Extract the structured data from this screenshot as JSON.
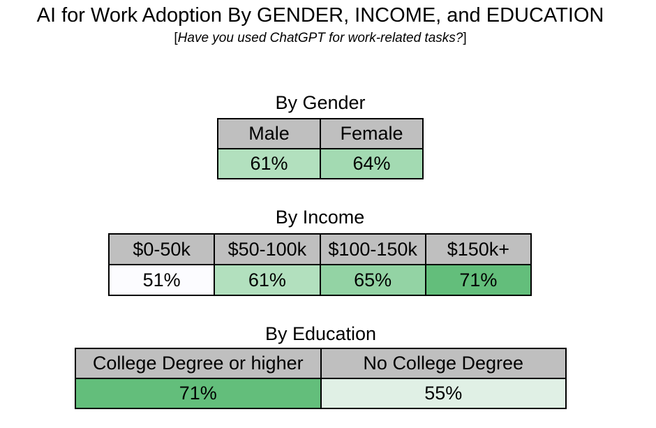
{
  "title": "AI for Work Adoption By GENDER, INCOME, and EDUCATION",
  "subtitle": {
    "open": "[",
    "question": "Have you used ChatGPT for work-related tasks?",
    "close": "]"
  },
  "colors": {
    "header_fill": "#bfbfbf",
    "cell_border": "#000000",
    "scale_low": "#ffffff",
    "scale_high": "#63be7b"
  },
  "chart_data": [
    {
      "type": "table",
      "title": "By Gender",
      "categories": [
        "Male",
        "Female"
      ],
      "values": [
        61,
        64
      ],
      "labels": [
        "61%",
        "64%"
      ],
      "fills": [
        "#b2e0be",
        "#a3dab2"
      ]
    },
    {
      "type": "table",
      "title": "By Income",
      "categories": [
        "$0-50k",
        "$50-100k",
        "$100-150k",
        "$150k+"
      ],
      "values": [
        51,
        61,
        65,
        71
      ],
      "labels": [
        "51%",
        "61%",
        "65%",
        "71%"
      ],
      "fills": [
        "#fcfcff",
        "#b2e0be",
        "#93d3a4",
        "#63be7b"
      ]
    },
    {
      "type": "table",
      "title": "By Education",
      "categories": [
        "College Degree or higher",
        "No College Degree"
      ],
      "values": [
        71,
        55
      ],
      "labels": [
        "71%",
        "55%"
      ],
      "fills": [
        "#63be7b",
        "#e0f0e5"
      ]
    }
  ]
}
